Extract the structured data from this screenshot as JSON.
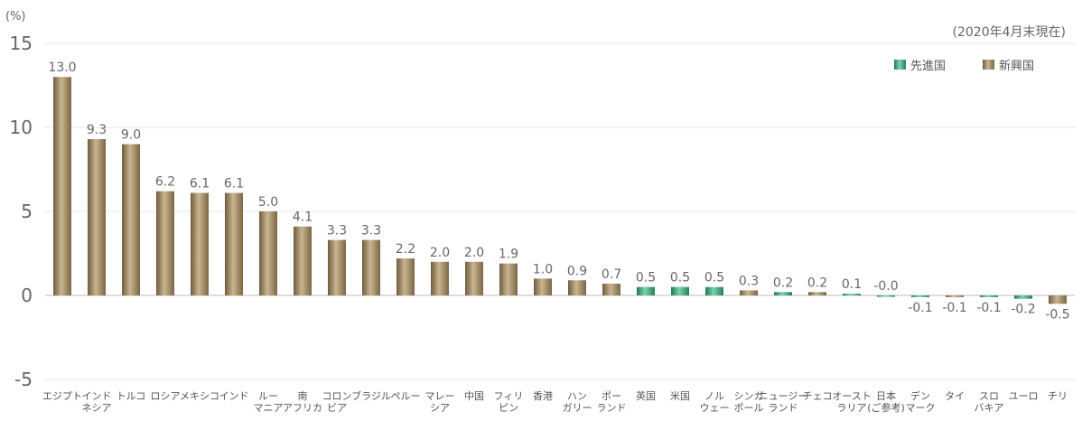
{
  "chart_data": {
    "type": "bar",
    "title": "",
    "xlabel": "",
    "ylabel": "",
    "unit_label": "(%)",
    "date_note": "(2020年4月末現在)",
    "ylim": [
      -5,
      15
    ],
    "yticks": [
      15,
      10,
      5,
      0,
      -5
    ],
    "legend": {
      "placement": "top-right",
      "items": [
        {
          "name": "先進国",
          "key": "developed",
          "color": "#2f9c74"
        },
        {
          "name": "新興国",
          "key": "emerging",
          "color": "#a48f6a"
        }
      ]
    },
    "categories": [
      {
        "name": [
          "エジプト"
        ],
        "value": 13.0,
        "label": "13.0",
        "group": "emerging"
      },
      {
        "name": [
          "インド",
          "ネシア"
        ],
        "value": 9.3,
        "label": "9.3",
        "group": "emerging"
      },
      {
        "name": [
          "トルコ"
        ],
        "value": 9.0,
        "label": "9.0",
        "group": "emerging"
      },
      {
        "name": [
          "ロシア"
        ],
        "value": 6.2,
        "label": "6.2",
        "group": "emerging"
      },
      {
        "name": [
          "メキシコ"
        ],
        "value": 6.1,
        "label": "6.1",
        "group": "emerging"
      },
      {
        "name": [
          "インド"
        ],
        "value": 6.1,
        "label": "6.1",
        "group": "emerging"
      },
      {
        "name": [
          "ルー",
          "マニア"
        ],
        "value": 5.0,
        "label": "5.0",
        "group": "emerging"
      },
      {
        "name": [
          "南",
          "アフリカ"
        ],
        "value": 4.1,
        "label": "4.1",
        "group": "emerging"
      },
      {
        "name": [
          "コロン",
          "ビア"
        ],
        "value": 3.3,
        "label": "3.3",
        "group": "emerging"
      },
      {
        "name": [
          "ブラジル"
        ],
        "value": 3.3,
        "label": "3.3",
        "group": "emerging"
      },
      {
        "name": [
          "ペルー"
        ],
        "value": 2.2,
        "label": "2.2",
        "group": "emerging"
      },
      {
        "name": [
          "マレー",
          "シア"
        ],
        "value": 2.0,
        "label": "2.0",
        "group": "emerging"
      },
      {
        "name": [
          "中国"
        ],
        "value": 2.0,
        "label": "2.0",
        "group": "emerging"
      },
      {
        "name": [
          "フィリ",
          "ピン"
        ],
        "value": 1.9,
        "label": "1.9",
        "group": "emerging"
      },
      {
        "name": [
          "香港"
        ],
        "value": 1.0,
        "label": "1.0",
        "group": "emerging"
      },
      {
        "name": [
          "ハン",
          "ガリー"
        ],
        "value": 0.9,
        "label": "0.9",
        "group": "emerging"
      },
      {
        "name": [
          "ポー",
          "ランド"
        ],
        "value": 0.7,
        "label": "0.7",
        "group": "emerging"
      },
      {
        "name": [
          "英国"
        ],
        "value": 0.5,
        "label": "0.5",
        "group": "developed"
      },
      {
        "name": [
          "米国"
        ],
        "value": 0.5,
        "label": "0.5",
        "group": "developed"
      },
      {
        "name": [
          "ノル",
          "ウェー"
        ],
        "value": 0.5,
        "label": "0.5",
        "group": "developed"
      },
      {
        "name": [
          "シンガ",
          "ポール"
        ],
        "value": 0.3,
        "label": "0.3",
        "group": "emerging"
      },
      {
        "name": [
          "ニュージー",
          "ランド"
        ],
        "value": 0.2,
        "label": "0.2",
        "group": "developed"
      },
      {
        "name": [
          "チェコ"
        ],
        "value": 0.2,
        "label": "0.2",
        "group": "emerging"
      },
      {
        "name": [
          "オースト",
          "ラリア"
        ],
        "value": 0.1,
        "label": "0.1",
        "group": "developed"
      },
      {
        "name": [
          "日本",
          "(ご参考)"
        ],
        "value": -0.0,
        "label": "-0.0",
        "group": "developed"
      },
      {
        "name": [
          "デン",
          "マーク"
        ],
        "value": -0.1,
        "label": "-0.1",
        "group": "developed"
      },
      {
        "name": [
          "タイ"
        ],
        "value": -0.1,
        "label": "-0.1",
        "group": "emerging"
      },
      {
        "name": [
          "スロ",
          "バキア"
        ],
        "value": -0.1,
        "label": "-0.1",
        "group": "developed"
      },
      {
        "name": [
          "ユーロ"
        ],
        "value": -0.2,
        "label": "-0.2",
        "group": "developed"
      },
      {
        "name": [
          "チリ"
        ],
        "value": -0.5,
        "label": "-0.5",
        "group": "emerging"
      }
    ]
  }
}
